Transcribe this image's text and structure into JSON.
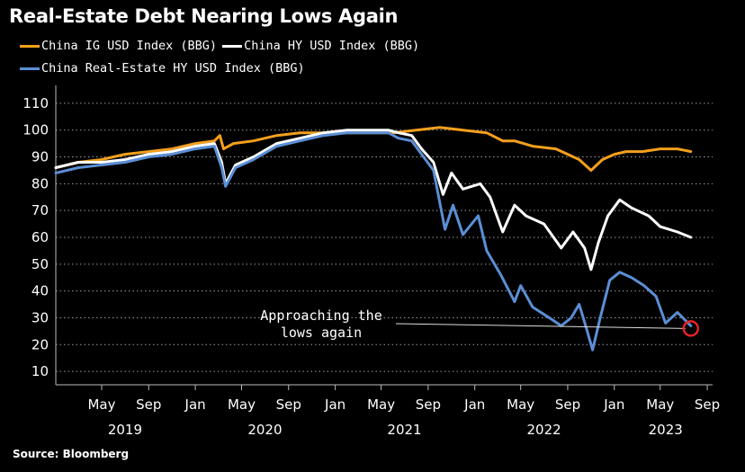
{
  "colors": {
    "ig": "#f4a01c",
    "hy": "#ffffff",
    "re": "#5b8fd6",
    "highlight": "#e8212a"
  },
  "source": "Source: Bloomberg",
  "chart_data": {
    "type": "line",
    "title": "Real-Estate Debt Nearing Lows Again",
    "xlabel": "",
    "ylabel": "",
    "ylim": [
      5,
      115
    ],
    "xlim": [
      "2019-01-01",
      "2023-09-15"
    ],
    "yticks": [
      10,
      20,
      30,
      40,
      50,
      60,
      70,
      80,
      90,
      100,
      110
    ],
    "grid": "dotted-horizontal",
    "legend_placement": "top-left",
    "xticks": [
      {
        "label": "May",
        "date": "2019-05-01"
      },
      {
        "label": "Sep",
        "date": "2019-09-01"
      },
      {
        "label": "Jan",
        "date": "2020-01-01"
      },
      {
        "label": "May",
        "date": "2020-05-01"
      },
      {
        "label": "Sep",
        "date": "2020-09-01"
      },
      {
        "label": "Jan",
        "date": "2021-01-01"
      },
      {
        "label": "May",
        "date": "2021-05-01"
      },
      {
        "label": "Sep",
        "date": "2021-09-01"
      },
      {
        "label": "Jan",
        "date": "2022-01-01"
      },
      {
        "label": "May",
        "date": "2022-05-01"
      },
      {
        "label": "Sep",
        "date": "2022-09-01"
      },
      {
        "label": "Jan",
        "date": "2023-01-01"
      },
      {
        "label": "May",
        "date": "2023-05-01"
      },
      {
        "label": "Sep",
        "date": "2023-09-01"
      }
    ],
    "year_labels": [
      {
        "label": "2019",
        "date": "2019-07-01"
      },
      {
        "label": "2020",
        "date": "2020-07-01"
      },
      {
        "label": "2021",
        "date": "2021-07-01"
      },
      {
        "label": "2022",
        "date": "2022-07-01"
      },
      {
        "label": "2023",
        "date": "2023-05-15"
      }
    ],
    "annotation": {
      "lines": [
        "Approaching the",
        "lows again"
      ],
      "point": {
        "date": "2023-07-20",
        "y": 26
      }
    },
    "series": [
      {
        "name": "China IG USD Index (BBG)",
        "points": [
          [
            "2019-01-01",
            86
          ],
          [
            "2019-03-01",
            88
          ],
          [
            "2019-05-01",
            89
          ],
          [
            "2019-07-01",
            91
          ],
          [
            "2019-09-01",
            92
          ],
          [
            "2019-11-01",
            93
          ],
          [
            "2020-01-01",
            95
          ],
          [
            "2020-02-20",
            96
          ],
          [
            "2020-03-05",
            98
          ],
          [
            "2020-03-15",
            93
          ],
          [
            "2020-04-10",
            95
          ],
          [
            "2020-06-01",
            96
          ],
          [
            "2020-08-01",
            98
          ],
          [
            "2020-10-01",
            99
          ],
          [
            "2020-12-01",
            99
          ],
          [
            "2021-02-01",
            99
          ],
          [
            "2021-04-01",
            99
          ],
          [
            "2021-06-01",
            99
          ],
          [
            "2021-08-01",
            100
          ],
          [
            "2021-10-01",
            101
          ],
          [
            "2021-12-01",
            100
          ],
          [
            "2022-02-01",
            99
          ],
          [
            "2022-03-15",
            96
          ],
          [
            "2022-04-15",
            96
          ],
          [
            "2022-06-01",
            94
          ],
          [
            "2022-08-01",
            93
          ],
          [
            "2022-10-01",
            89
          ],
          [
            "2022-11-01",
            85
          ],
          [
            "2022-12-01",
            89
          ],
          [
            "2023-01-01",
            91
          ],
          [
            "2023-02-01",
            92
          ],
          [
            "2023-03-15",
            92
          ],
          [
            "2023-05-01",
            93
          ],
          [
            "2023-06-15",
            93
          ],
          [
            "2023-07-20",
            92
          ]
        ]
      },
      {
        "name": "China HY USD Index (BBG)",
        "points": [
          [
            "2019-01-01",
            86
          ],
          [
            "2019-03-01",
            88
          ],
          [
            "2019-05-01",
            88
          ],
          [
            "2019-07-01",
            89
          ],
          [
            "2019-09-01",
            91
          ],
          [
            "2019-11-01",
            92
          ],
          [
            "2020-01-01",
            94
          ],
          [
            "2020-02-20",
            95
          ],
          [
            "2020-03-10",
            88
          ],
          [
            "2020-03-20",
            80
          ],
          [
            "2020-04-15",
            87
          ],
          [
            "2020-06-01",
            90
          ],
          [
            "2020-08-01",
            95
          ],
          [
            "2020-10-01",
            97
          ],
          [
            "2020-12-01",
            99
          ],
          [
            "2021-02-01",
            100
          ],
          [
            "2021-04-01",
            100
          ],
          [
            "2021-05-20",
            100
          ],
          [
            "2021-06-15",
            99
          ],
          [
            "2021-07-20",
            98
          ],
          [
            "2021-08-15",
            93
          ],
          [
            "2021-09-15",
            88
          ],
          [
            "2021-10-10",
            76
          ],
          [
            "2021-11-01",
            84
          ],
          [
            "2021-12-01",
            78
          ],
          [
            "2022-01-15",
            80
          ],
          [
            "2022-02-10",
            75
          ],
          [
            "2022-03-15",
            62
          ],
          [
            "2022-04-15",
            72
          ],
          [
            "2022-05-15",
            68
          ],
          [
            "2022-07-01",
            65
          ],
          [
            "2022-08-15",
            56
          ],
          [
            "2022-09-15",
            62
          ],
          [
            "2022-10-15",
            56
          ],
          [
            "2022-11-01",
            48
          ],
          [
            "2022-11-20",
            58
          ],
          [
            "2022-12-15",
            68
          ],
          [
            "2023-01-15",
            74
          ],
          [
            "2023-02-15",
            71
          ],
          [
            "2023-04-01",
            68
          ],
          [
            "2023-05-01",
            64
          ],
          [
            "2023-06-15",
            62
          ],
          [
            "2023-07-20",
            60
          ]
        ]
      },
      {
        "name": "China Real-Estate HY USD Index (BBG)",
        "points": [
          [
            "2019-01-01",
            84
          ],
          [
            "2019-03-01",
            86
          ],
          [
            "2019-05-01",
            87
          ],
          [
            "2019-07-01",
            88
          ],
          [
            "2019-09-01",
            90
          ],
          [
            "2019-11-01",
            91
          ],
          [
            "2020-01-01",
            93
          ],
          [
            "2020-02-20",
            94
          ],
          [
            "2020-03-10",
            86
          ],
          [
            "2020-03-20",
            79
          ],
          [
            "2020-04-15",
            86
          ],
          [
            "2020-06-01",
            89
          ],
          [
            "2020-08-01",
            94
          ],
          [
            "2020-10-01",
            96
          ],
          [
            "2020-12-01",
            98
          ],
          [
            "2021-02-01",
            99
          ],
          [
            "2021-04-01",
            99
          ],
          [
            "2021-05-20",
            99
          ],
          [
            "2021-06-15",
            97
          ],
          [
            "2021-07-20",
            96
          ],
          [
            "2021-08-15",
            91
          ],
          [
            "2021-09-15",
            85
          ],
          [
            "2021-10-15",
            63
          ],
          [
            "2021-11-05",
            72
          ],
          [
            "2021-12-01",
            61
          ],
          [
            "2022-01-10",
            68
          ],
          [
            "2022-02-01",
            55
          ],
          [
            "2022-03-10",
            46
          ],
          [
            "2022-04-15",
            36
          ],
          [
            "2022-05-01",
            42
          ],
          [
            "2022-06-01",
            34
          ],
          [
            "2022-07-15",
            30
          ],
          [
            "2022-08-15",
            27
          ],
          [
            "2022-09-10",
            30
          ],
          [
            "2022-10-01",
            35
          ],
          [
            "2022-10-20",
            26
          ],
          [
            "2022-11-05",
            18
          ],
          [
            "2022-11-25",
            30
          ],
          [
            "2022-12-20",
            44
          ],
          [
            "2023-01-15",
            47
          ],
          [
            "2023-02-15",
            45
          ],
          [
            "2023-03-20",
            42
          ],
          [
            "2023-04-20",
            38
          ],
          [
            "2023-05-15",
            28
          ],
          [
            "2023-06-15",
            32
          ],
          [
            "2023-07-20",
            27
          ]
        ]
      }
    ]
  }
}
